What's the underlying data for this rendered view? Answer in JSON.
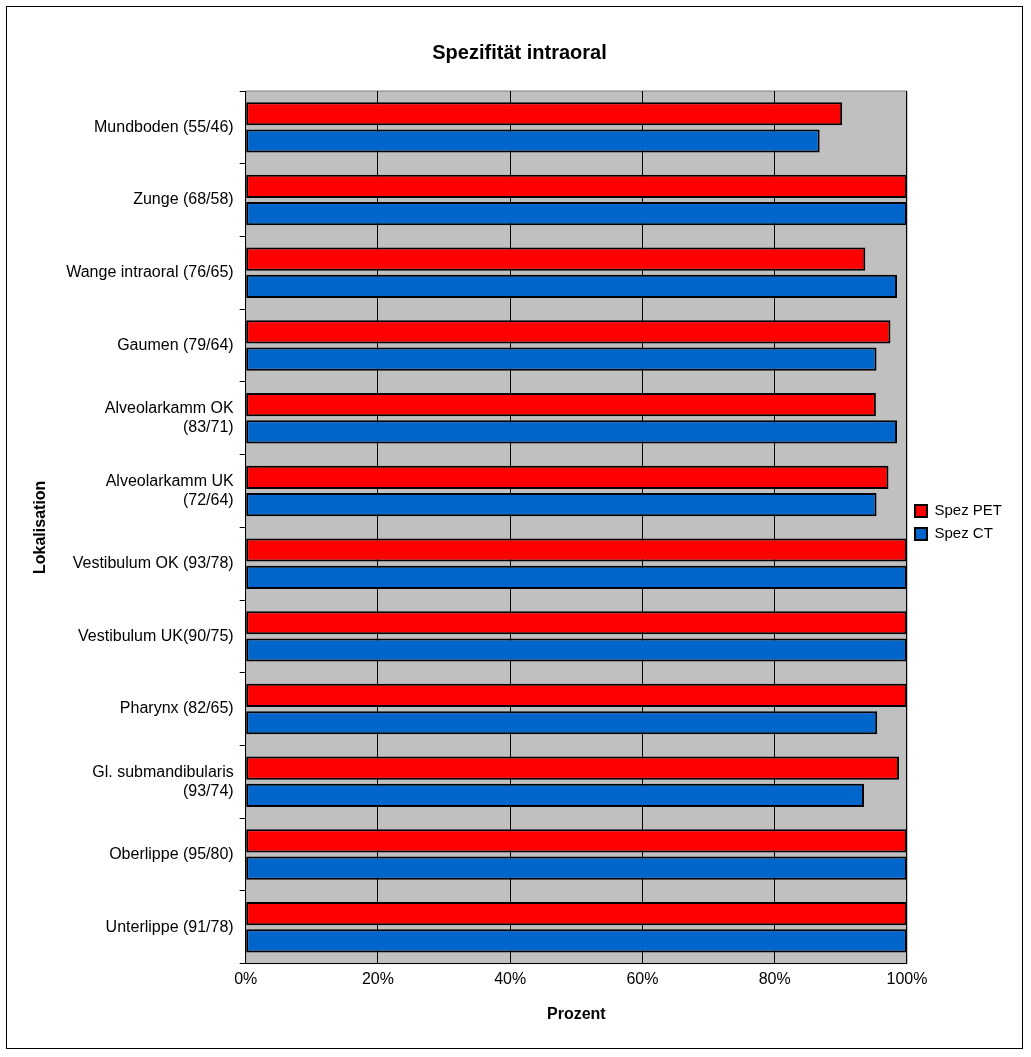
{
  "chart_data": {
    "type": "bar",
    "orientation": "horizontal",
    "title": "Spezifität intraoral",
    "xlabel": "Prozent",
    "ylabel": "Lokalisation",
    "categories": [
      "Mundboden (55/46)",
      "Zunge (68/58)",
      "Wange intraoral (76/65)",
      "Gaumen (79/64)",
      "Alveolarkamm OK (83/71)",
      "Alveolarkamm UK (72/64)",
      "Vestibulum OK (93/78)",
      "Vestibulum UK(90/75)",
      "Pharynx (82/65)",
      "Gl. submandibularis (93/74)",
      "Oberlippe (95/80)",
      "Unterlippe (91/78)"
    ],
    "series": [
      {
        "name": "Spez PET",
        "color": "#ff0000",
        "values": [
          90.2,
          100,
          93.7,
          97.5,
          95.3,
          97.2,
          100,
          100,
          100,
          98.8,
          100,
          100
        ]
      },
      {
        "name": "Spez CT",
        "color": "#0066cc",
        "values": [
          86.8,
          100,
          98.5,
          95.4,
          98.5,
          95.4,
          100,
          100,
          95.5,
          93.5,
          100,
          100
        ]
      }
    ],
    "xlim": [
      0,
      100
    ],
    "xticks": [
      {
        "value": 0,
        "label": "0%"
      },
      {
        "value": 20,
        "label": "20%"
      },
      {
        "value": 40,
        "label": "40%"
      },
      {
        "value": 60,
        "label": "60%"
      },
      {
        "value": 80,
        "label": "80%"
      },
      {
        "value": 100,
        "label": "100%"
      }
    ],
    "grid": "x",
    "legend": "right"
  }
}
